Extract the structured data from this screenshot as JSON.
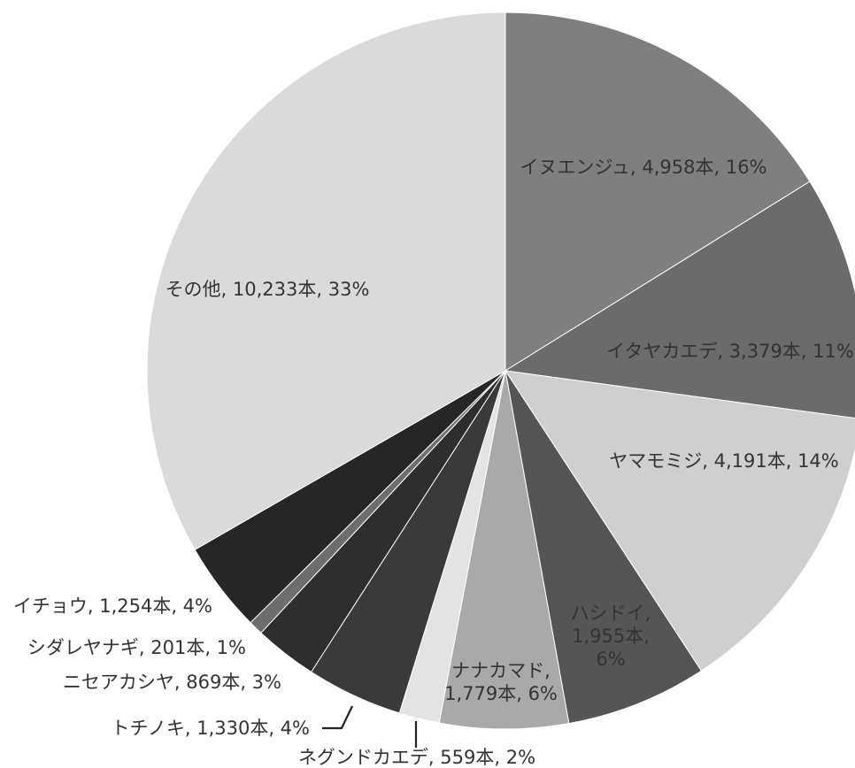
{
  "chart_data": {
    "type": "pie",
    "unit": "本",
    "start_angle_deg": 90,
    "direction": "clockwise",
    "slices": [
      {
        "name": "イヌエンジュ",
        "value": 4958,
        "percent": "16%",
        "color": "#7f7f7f",
        "label": [
          "イヌエンジュ, 4,958本, 16%"
        ]
      },
      {
        "name": "イタヤカエデ",
        "value": 3379,
        "percent": "11%",
        "color": "#6b6b6b",
        "label": [
          "イタヤカエデ, 3,379本, 11%"
        ]
      },
      {
        "name": "ヤマモミジ",
        "value": 4191,
        "percent": "14%",
        "color": "#cfcfcf",
        "label": [
          "ヤマモミジ, 4,191本, 14%"
        ]
      },
      {
        "name": "ハシドイ",
        "value": 1955,
        "percent": "6%",
        "color": "#555555",
        "label": [
          "ハシドイ,",
          "1,955本,",
          "6%"
        ]
      },
      {
        "name": "ナナカマド",
        "value": 1779,
        "percent": "6%",
        "color": "#a9a9a9",
        "label": [
          "ナナカマド,",
          "1,779本, 6%"
        ]
      },
      {
        "name": "ネグンドカエデ",
        "value": 559,
        "percent": "2%",
        "color": "#e3e3e3",
        "label": [
          "ネグンドカエデ, 559本, 2%"
        ]
      },
      {
        "name": "トチノキ",
        "value": 1330,
        "percent": "4%",
        "color": "#3a3a3a",
        "label": [
          "トチノキ, 1,330本, 4%"
        ]
      },
      {
        "name": "ニセアカシヤ",
        "value": 869,
        "percent": "3%",
        "color": "#2e2e2e",
        "label": [
          "ニセアカシヤ, 869本, 3%"
        ]
      },
      {
        "name": "シダレヤナギ",
        "value": 201,
        "percent": "1%",
        "color": "#6e6e6e",
        "label": [
          "シダレヤナギ, 201本, 1%"
        ]
      },
      {
        "name": "イチョウ",
        "value": 1254,
        "percent": "4%",
        "color": "#262626",
        "label": [
          "イチョウ, 1,254本, 4%"
        ]
      },
      {
        "name": "その他",
        "value": 10233,
        "percent": "33%",
        "color": "#dadada",
        "label": [
          "その他, 10,233本, 33%"
        ]
      }
    ]
  }
}
